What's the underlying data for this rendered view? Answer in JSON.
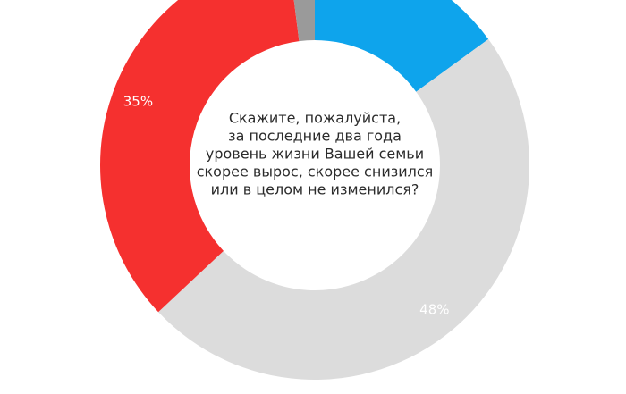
{
  "chart_data": {
    "type": "donut",
    "title_lines": [
      "Скажите, пожалуйста,",
      "за последние два года",
      "уровень жизни Вашей семьи",
      "скорее вырос, скорее снизился",
      "или в целом не изменился?"
    ],
    "values": [
      15,
      48,
      35,
      2
    ],
    "value_labels": [
      null,
      "48%",
      "35%",
      null
    ],
    "colors": [
      "#0ea4ec",
      "#dcdcdc",
      "#f5302f",
      "#9a9a9a"
    ]
  }
}
